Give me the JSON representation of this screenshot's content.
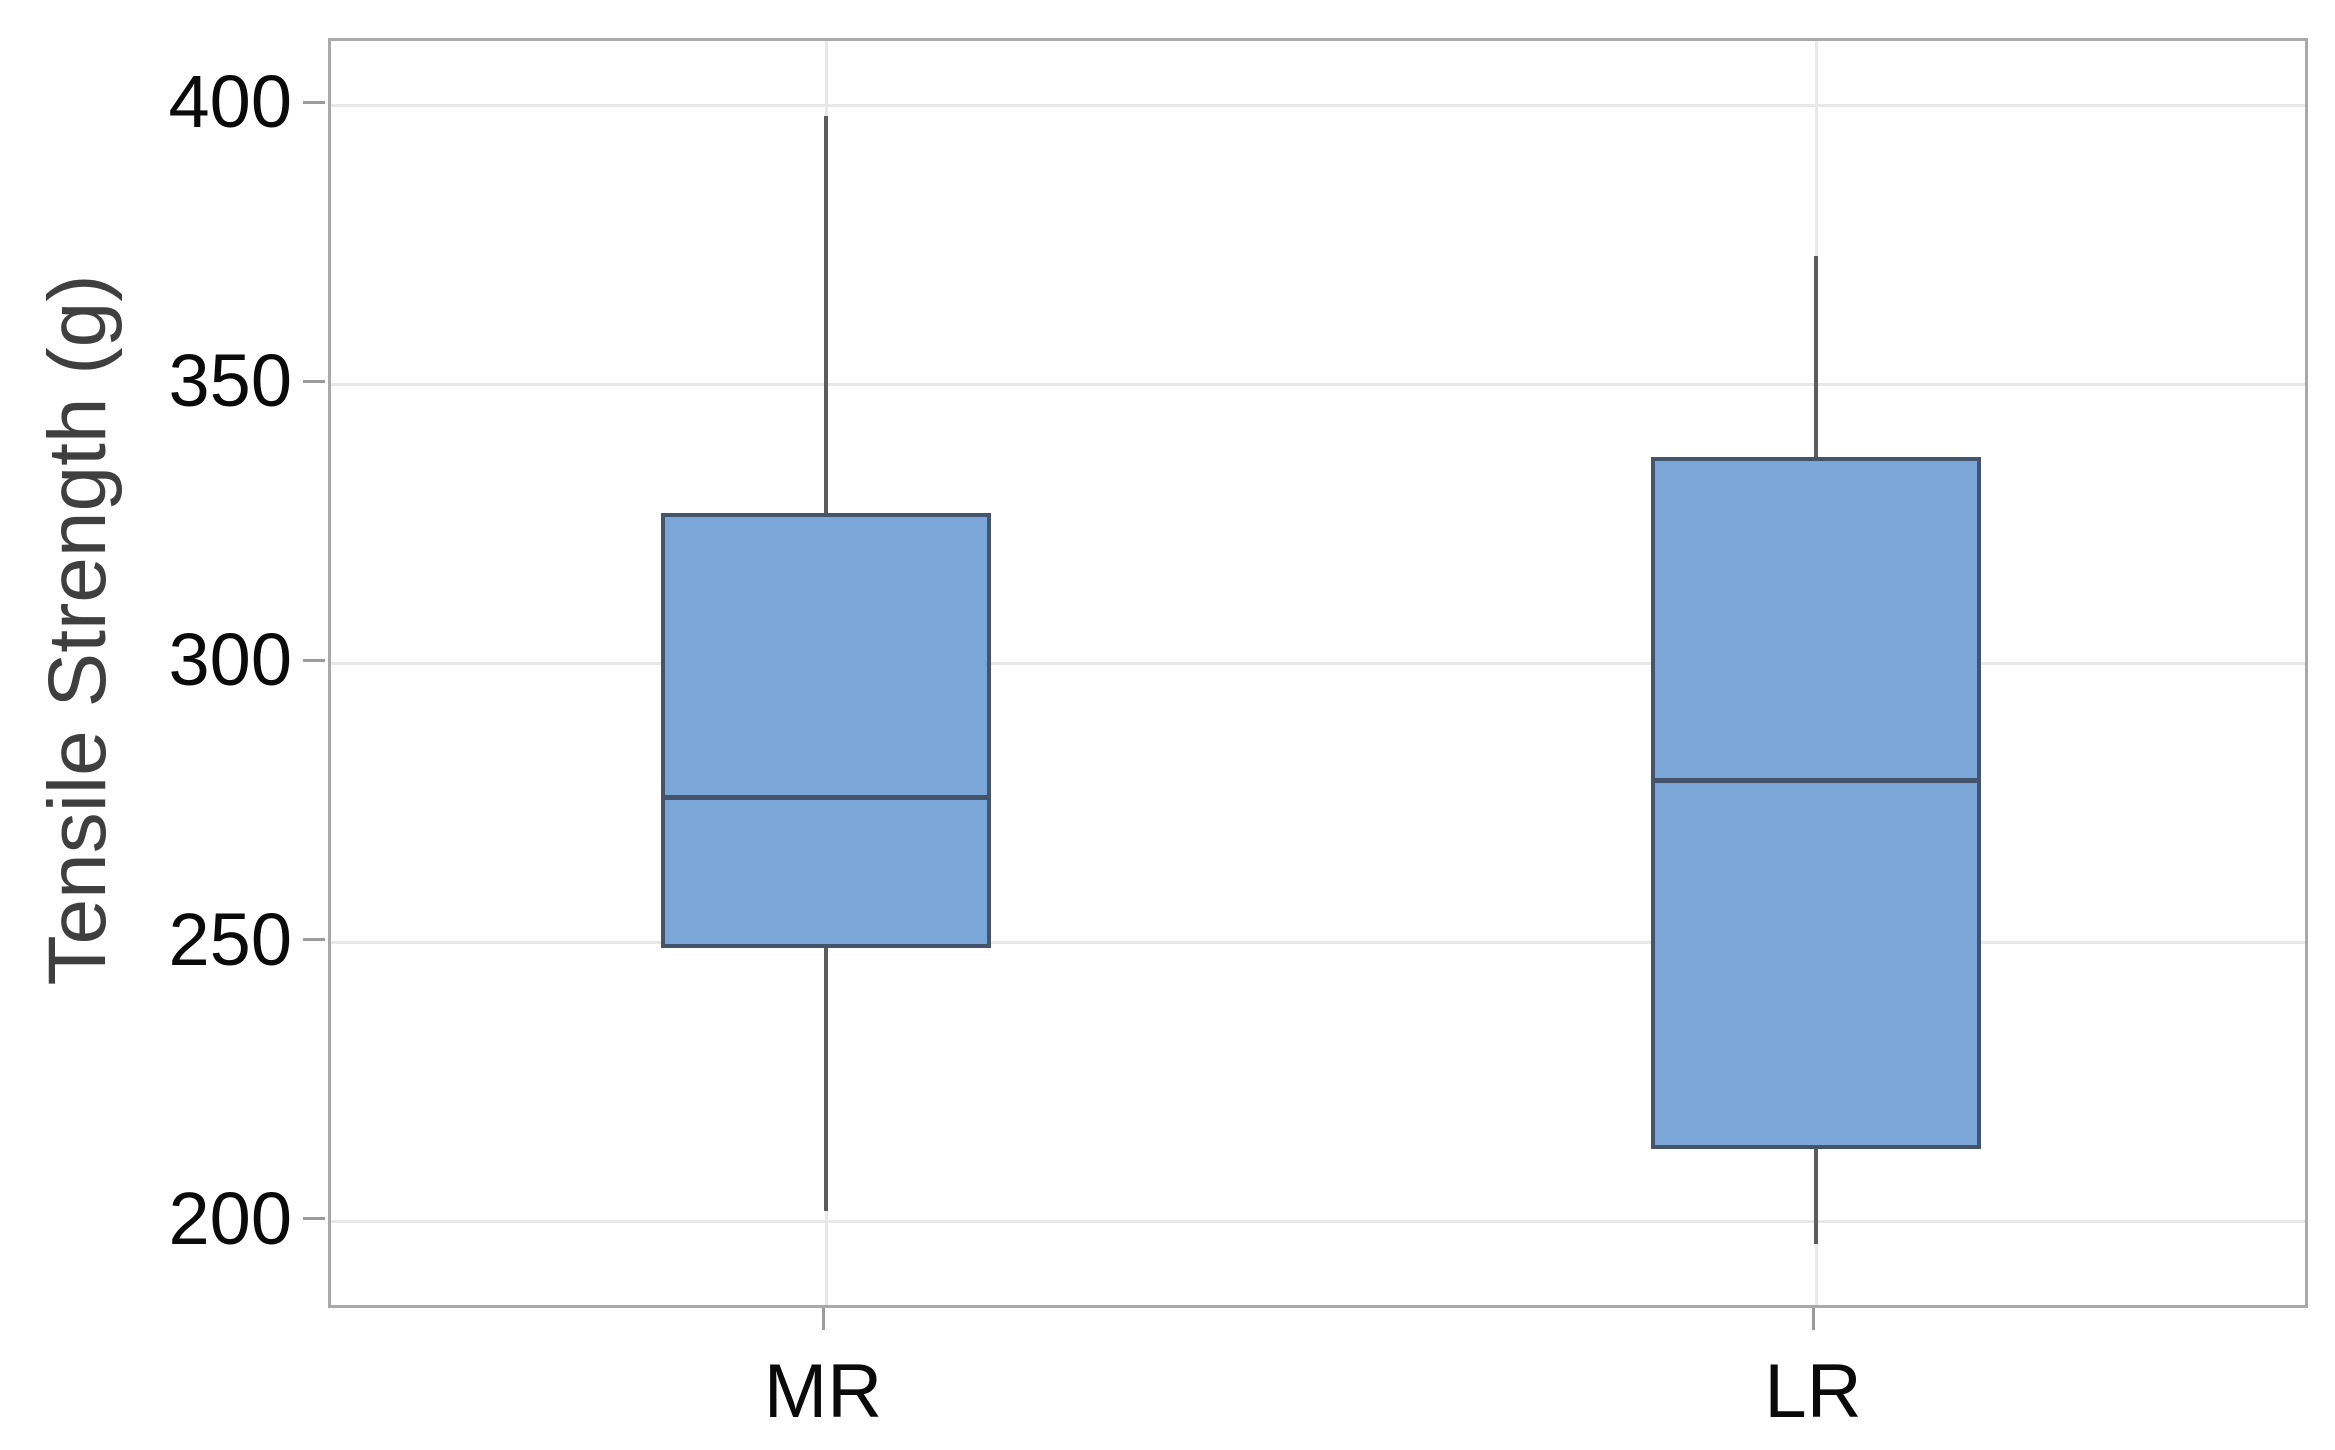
{
  "chart_data": {
    "type": "box",
    "title": "",
    "xlabel": "",
    "ylabel": "Tensile Strength (g)",
    "categories": [
      "MR",
      "LR"
    ],
    "y_ticks": [
      400,
      350,
      300,
      250,
      200
    ],
    "ylim": [
      184,
      411.5
    ],
    "grid": "light horizontal gridlines at each y tick and light vertical gridline at each category; full frame around plot",
    "legend": "none",
    "series": [
      {
        "name": "MR",
        "whisker_low": 202,
        "q1": 249,
        "median": 276,
        "q3": 327,
        "whisker_high": 398,
        "outliers": []
      },
      {
        "name": "LR",
        "whisker_low": 196,
        "q1": 213,
        "median": 279,
        "q3": 337,
        "whisker_high": 373,
        "outliers": []
      }
    ],
    "colors": {
      "box_fill": "#7aa6d8",
      "box_border": "#44546a",
      "median_line": "#44546a",
      "whisker": "#5c5c5c",
      "gridline": "#e8e8e8",
      "frame": "#a9a9a9",
      "tick_mark": "#9b9b9b",
      "tick_label": "#0a0a0a",
      "axis_title": "#3f3f3f"
    }
  }
}
